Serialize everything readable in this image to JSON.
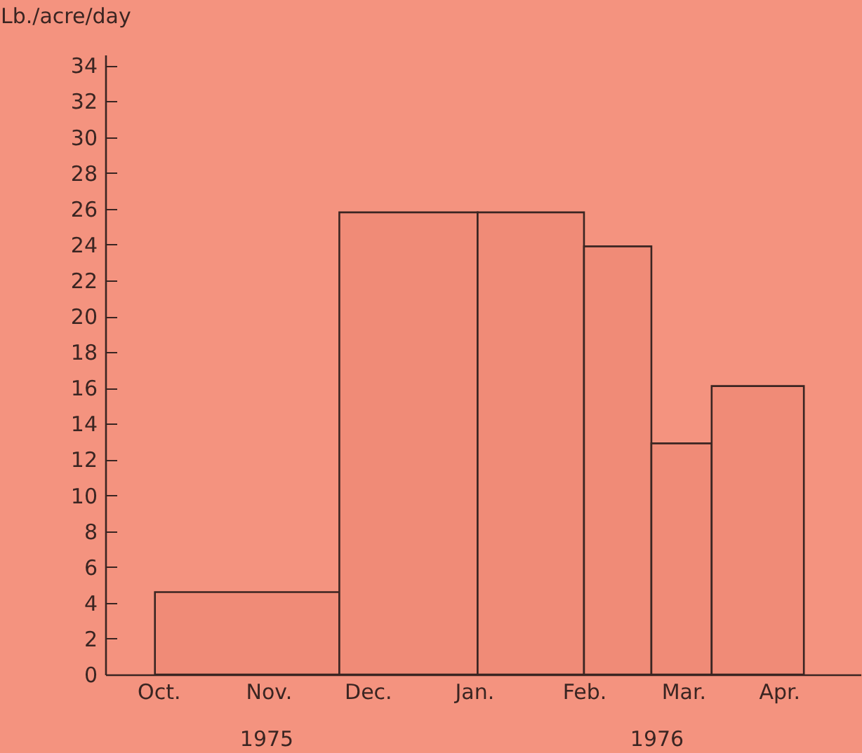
{
  "chart_data": {
    "type": "histogram",
    "ylabel": "Lb./acre/day",
    "bins": [
      "1975-10-15",
      "1975-12-06",
      "1976-01-14",
      "1976-02-13",
      "1976-03-03",
      "1976-03-20",
      "1976-04-15"
    ],
    "values": [
      4.6,
      25.8,
      25.8,
      23.9,
      12.9,
      16.1
    ],
    "color": "#f08b77",
    "xlim": [
      "1975-10-01",
      "1976-05-01"
    ],
    "xticks": [
      {
        "value": "1975-10-16",
        "label": "Oct."
      },
      {
        "value": "1975-11-01",
        "label": null
      },
      {
        "value": "1975-11-16",
        "label": "Nov."
      },
      {
        "value": "1975-12-01",
        "label": null
      },
      {
        "value": "1975-12-14",
        "label": "Dec."
      },
      {
        "value": "1976-01-01",
        "label": null
      },
      {
        "value": "1976-01-13",
        "label": "Jan."
      },
      {
        "value": "1976-02-01",
        "label": null
      },
      {
        "value": "1976-02-13",
        "label": "Feb."
      },
      {
        "value": "1976-03-01",
        "label": null
      },
      {
        "value": "1976-03-12",
        "label": "Mar."
      },
      {
        "value": "1976-04-01",
        "label": null
      },
      {
        "value": "1976-04-08",
        "label": "Apr."
      }
    ],
    "ylim": [
      0,
      34.6
    ],
    "yticks": [
      0,
      2,
      4,
      6,
      8,
      10,
      12,
      14,
      16,
      18,
      20,
      22,
      24,
      26,
      28,
      30,
      32,
      34
    ],
    "annotations": [
      "1975",
      "1976"
    ]
  }
}
